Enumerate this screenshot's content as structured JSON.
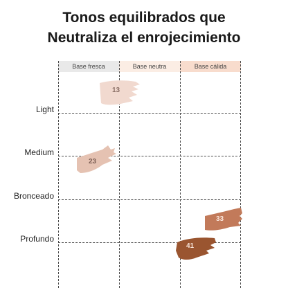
{
  "title": {
    "line1": "Tonos equilibrados que",
    "line2": "Neutraliza el enrojecimiento"
  },
  "columns": [
    "Base fresca",
    "Base neutra",
    "Base cálida"
  ],
  "rows": [
    "Light",
    "Medium",
    "Bronceado",
    "Profundo"
  ],
  "swatches": [
    {
      "label": "13",
      "column": "Base fresca",
      "row": "Light",
      "color": "#f1d9cf"
    },
    {
      "label": "23",
      "column": "Base fresca",
      "row": "Medium",
      "color": "#e5c2b2"
    },
    {
      "label": "33",
      "column": "Base cálida",
      "row": "Bronceado",
      "color": "#c27a5a"
    },
    {
      "label": "41",
      "column": "Base cálida",
      "row": "Profundo",
      "color": "#9a5530"
    }
  ]
}
